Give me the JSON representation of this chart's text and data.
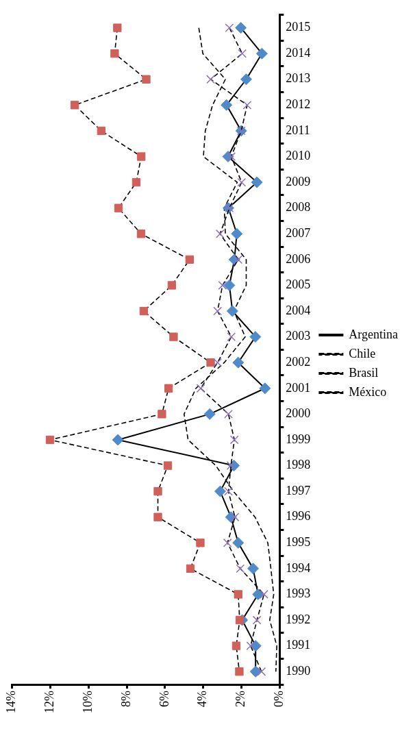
{
  "chart_data": {
    "type": "line",
    "orientation": "horizontal",
    "categories": [
      "2015",
      "2014",
      "2013",
      "2012",
      "2011",
      "2010",
      "2009",
      "2008",
      "2007",
      "2006",
      "2005",
      "2004",
      "2003",
      "2002",
      "2001",
      "2000",
      "1999",
      "1998",
      "1997",
      "1996",
      "1995",
      "1994",
      "1993",
      "1992",
      "1991",
      "1990"
    ],
    "series": [
      {
        "name": "Argentina",
        "color": "#4f8ac9",
        "marker": "diamond",
        "line_style": "solid",
        "values": [
          2.03,
          0.93,
          1.75,
          2.78,
          2.01,
          2.7,
          1.19,
          2.68,
          2.24,
          2.37,
          2.63,
          2.47,
          1.27,
          2.17,
          0.77,
          3.66,
          8.46,
          2.39,
          3.11,
          2.55,
          2.17,
          1.39,
          1.13,
          1.96,
          1.26,
          1.26
        ]
      },
      {
        "name": "Chile",
        "color": "#d0605a",
        "marker": "square",
        "line_style": "dashed",
        "values": [
          8.49,
          8.63,
          6.98,
          10.72,
          9.33,
          7.24,
          7.5,
          8.43,
          7.25,
          4.71,
          5.64,
          7.11,
          5.55,
          3.61,
          5.81,
          6.16,
          12.01,
          5.85,
          6.37,
          6.37,
          4.15,
          4.67,
          2.17,
          2.09,
          2.27,
          2.11
        ]
      },
      {
        "name": "Brasil",
        "color": "#000000",
        "marker": "none",
        "line_style": "dashed",
        "values": [
          4.23,
          4.02,
          2.84,
          3.51,
          3.89,
          3.99,
          2.22,
          2.9,
          2.84,
          1.75,
          1.75,
          2.4,
          1.8,
          2.9,
          4.38,
          5.0,
          4.79,
          3.34,
          2.42,
          1.29,
          0.62,
          0.46,
          0.31,
          0.52,
          0.15,
          0.2
        ]
      },
      {
        "name": "México",
        "color": "#8e72b8",
        "marker": "cross",
        "line_style": "dashed",
        "values": [
          2.63,
          1.96,
          3.61,
          1.7,
          2.01,
          2.53,
          1.99,
          2.63,
          3.12,
          2.17,
          2.99,
          3.25,
          2.53,
          3.25,
          4.13,
          2.68,
          2.37,
          2.55,
          2.68,
          2.34,
          2.73,
          2.06,
          0.82,
          1.19,
          1.52,
          0.95
        ]
      }
    ],
    "xlim": [
      14,
      0
    ],
    "xticks": [
      {
        "value": 14,
        "label": "14%"
      },
      {
        "value": 12,
        "label": "12%"
      },
      {
        "value": 10,
        "label": "10%"
      },
      {
        "value": 8,
        "label": "8%"
      },
      {
        "value": 6,
        "label": "6%"
      },
      {
        "value": 4,
        "label": "4%"
      },
      {
        "value": 2,
        "label": "2%"
      },
      {
        "value": 0,
        "label": "0%"
      }
    ],
    "grid": false,
    "legend": "right"
  }
}
